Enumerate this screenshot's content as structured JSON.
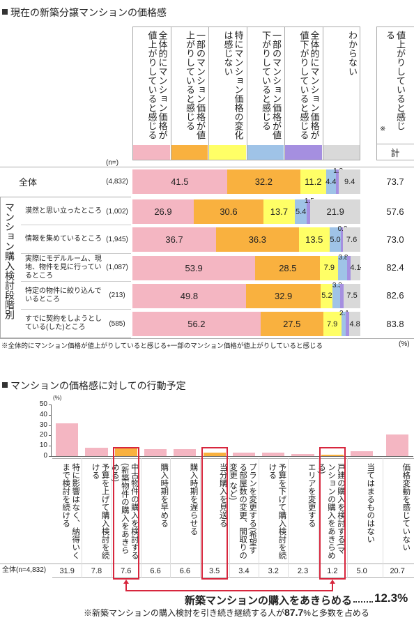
{
  "chart_data": [
    {
      "type": "stacked-barh",
      "title": "現在の新築分譲マンションの価格感",
      "n_header": "(n=)",
      "group_label": "マンション購入検討段階別",
      "categories": [
        "全体",
        "漠然と思い立ったところ",
        "情報を集めているところ",
        "実際にモデルルーム、現地、物件を見に行っているところ",
        "特定の物件に絞り込んでいるところ",
        "すでに契約をしようとしている(した)ところ"
      ],
      "n_labels": [
        "(4,832)",
        "(1,002)",
        "(1,945)",
        "(1,087)",
        "(213)",
        "(585)"
      ],
      "xlim": [
        0,
        100
      ],
      "series": [
        {
          "name": "全体的にマンション価格が値上がりしていると感じる",
          "color": "#f4b6c2",
          "values": [
            41.5,
            26.9,
            36.7,
            53.9,
            49.8,
            56.2
          ],
          "value_labels": [
            "41.5",
            "26.9",
            "36.7",
            "53.9",
            "49.8",
            "56.2"
          ]
        },
        {
          "name": "一部のマンション価格が値上がりしていると感じる",
          "color": "#f9b13f",
          "values": [
            32.2,
            30.6,
            36.3,
            28.5,
            32.9,
            27.5
          ],
          "value_labels": [
            "32.2",
            "30.6",
            "36.3",
            "28.5",
            "32.9",
            "27.5"
          ]
        },
        {
          "name": "特にマンション価格の変化は感じない",
          "color": "#ffff66",
          "values": [
            11.2,
            13.7,
            13.5,
            7.9,
            5.2,
            7.9
          ],
          "value_labels": [
            "11.2",
            "13.7",
            "13.5",
            "7.9",
            "5.2",
            "7.9"
          ]
        },
        {
          "name": "一部のマンション価格が値下がりしていると感じる",
          "color": "#9fc3e7",
          "values": [
            4.4,
            5.4,
            5.0,
            3.8,
            3.3,
            2.1
          ],
          "value_labels": [
            "4.4",
            "5.4",
            "5.0",
            "3.8",
            "3.3",
            "2.1"
          ]
        },
        {
          "name": "全体的にマンション価格が値下がりしていると感じる",
          "color": "#a58fe0",
          "values": [
            1.3,
            1.5,
            0.9,
            1.7,
            1.4,
            1.5
          ],
          "value_labels": [
            "1.3",
            "1.5",
            "0.9",
            "1.7",
            "1.4",
            "1.5"
          ]
        },
        {
          "name": "わからない",
          "color": "#d9d9d9",
          "values": [
            9.4,
            21.9,
            7.6,
            4.1,
            7.5,
            4.8
          ],
          "value_labels": [
            "9.4",
            "21.9",
            "7.6",
            "4.1",
            "7.5",
            "4.8"
          ]
        }
      ],
      "totals": {
        "header": "値上がりしていると感じる",
        "header_mark": "※",
        "footer": "計",
        "values": [
          73.7,
          57.6,
          73.0,
          82.4,
          82.6,
          83.8
        ],
        "value_labels": [
          "73.7",
          "57.6",
          "73.0",
          "82.4",
          "82.6",
          "83.8"
        ]
      },
      "footnote": "※全体的にマンション価格が値上がりしていると感じる+一部のマンション価格が値上がりしていると感じる",
      "unit": "(%)"
    },
    {
      "type": "bar",
      "title": "マンションの価格感に対しての行動予定",
      "ylabel": "(%)",
      "ylim": [
        0,
        50
      ],
      "yticks": [
        0,
        10,
        20,
        30,
        40,
        50
      ],
      "row_label": "全体(n=4,832)",
      "categories": [
        "特に影響はなく、納得いくまで検討を続ける",
        "予算を上げて購入検討を続ける",
        "中古物件の購入を検討する(新築物件の購入をあきらめる)",
        "購入時期を早める",
        "購入時期を遅らせる",
        "当分購入を見送る",
        "プランを変更する(希望する部屋数の変更、間取りの変更 など)",
        "予算を下げて購入検討を続ける",
        "エリアを変更する",
        "戸建の購入を検討する(マンションの購入をあきらめる)",
        "当てはまるものはない",
        "価格変動を感じていない"
      ],
      "values": [
        31.9,
        7.8,
        7.6,
        6.6,
        6.6,
        3.5,
        3.4,
        3.2,
        2.3,
        1.2,
        5.0,
        20.7
      ],
      "value_labels": [
        "31.9",
        "7.8",
        "7.6",
        "6.6",
        "6.6",
        "3.5",
        "3.4",
        "3.2",
        "2.3",
        "1.2",
        "5.0",
        "20.7"
      ],
      "color": "#f4b6c2",
      "highlight": [
        2,
        5,
        9
      ],
      "highlight_color": "#f9b13f",
      "box_color": "#d7263d",
      "annotation": {
        "text": "新築マンションの購入をあきらめる",
        "total": "12.3%"
      },
      "note": [
        "※新築マンションの購入検討を引き続き継続する人が",
        "87.7",
        "%と多数を占める"
      ]
    }
  ]
}
